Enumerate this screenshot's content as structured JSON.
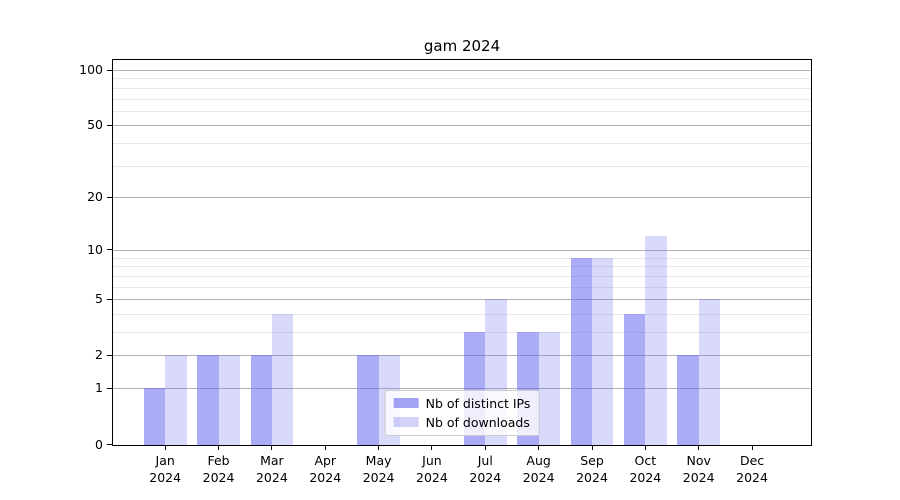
{
  "title": "gam 2024",
  "chart_data": {
    "type": "bar",
    "title": "gam 2024",
    "categories": [
      "Jan 2024",
      "Feb 2024",
      "Mar 2024",
      "Apr 2024",
      "May 2024",
      "Jun 2024",
      "Jul 2024",
      "Aug 2024",
      "Sep 2024",
      "Oct 2024",
      "Nov 2024",
      "Dec 2024"
    ],
    "x_tick_months": [
      "Jan",
      "Feb",
      "Mar",
      "Apr",
      "May",
      "Jun",
      "Jul",
      "Aug",
      "Sep",
      "Oct",
      "Nov",
      "Dec"
    ],
    "x_tick_year": "2024",
    "series": [
      {
        "name": "Nb of distinct IPs",
        "color": "#6666ee",
        "alpha": 0.55,
        "values": [
          1,
          2,
          2,
          0,
          2,
          0,
          3,
          3,
          9,
          4,
          2,
          0
        ]
      },
      {
        "name": "Nb of downloads",
        "color": "#6666ee",
        "alpha": 0.25,
        "values": [
          2,
          2,
          4,
          0,
          2,
          0,
          5,
          3,
          9,
          12,
          5,
          0
        ]
      }
    ],
    "xlabel": "",
    "ylabel": "",
    "y_axis": {
      "scale": "log1p",
      "major_ticks": [
        0,
        1,
        2,
        5,
        10,
        20,
        50,
        100
      ],
      "major_tick_labels": [
        "0",
        "1",
        "2",
        "5",
        "10",
        "20",
        "50",
        "100"
      ],
      "minor_ticks": [
        3,
        4,
        6,
        7,
        8,
        9,
        30,
        40,
        60,
        70,
        80,
        90
      ],
      "ylim": [
        0,
        114
      ]
    },
    "grid": {
      "major_color": "#b2b2b2",
      "minor_color": "#e8e8e8",
      "visible": true
    },
    "legend": {
      "location": "lower center",
      "background": "#ffffff",
      "border_color": "#cccccc"
    }
  }
}
